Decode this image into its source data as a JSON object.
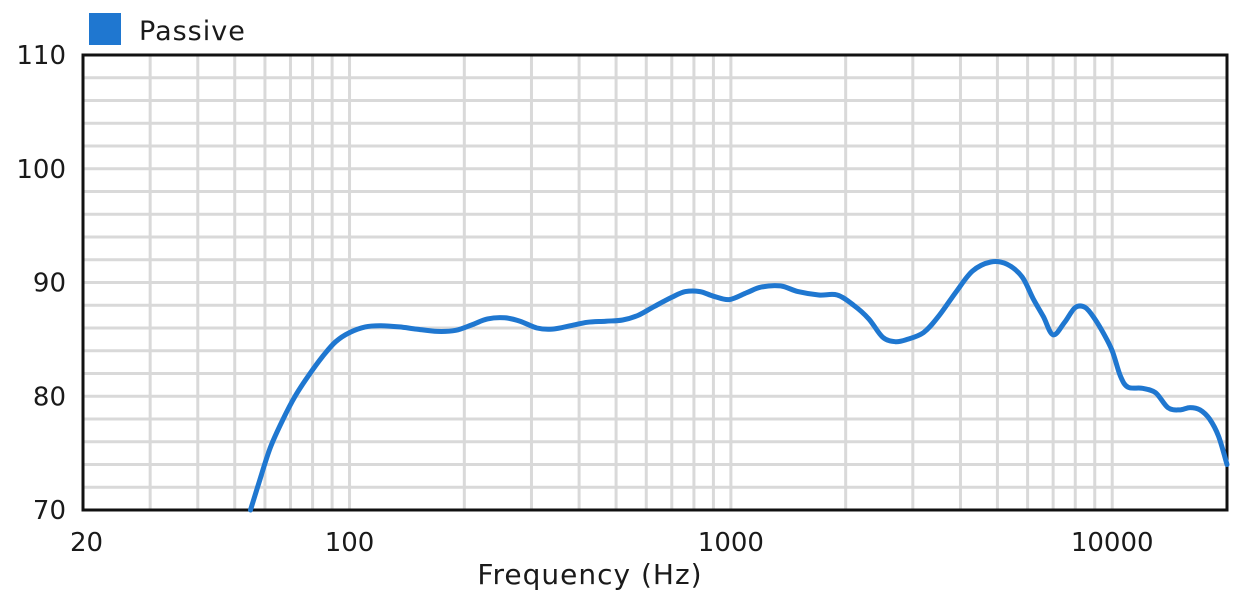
{
  "chart_data": {
    "type": "line",
    "xlabel": "Frequency (Hz)",
    "ylabel": "",
    "x_scale": "log",
    "xlim": [
      20,
      20000
    ],
    "ylim": [
      70,
      110
    ],
    "x_ticks": [
      20,
      100,
      1000,
      10000
    ],
    "x_tick_labels": [
      "20",
      "100",
      "1000",
      "10000"
    ],
    "y_ticks": [
      70,
      80,
      90,
      100,
      110
    ],
    "y_tick_labels": [
      "70",
      "80",
      "90",
      "100",
      "110"
    ],
    "grid": true,
    "legend_position": "top-left",
    "series": [
      {
        "name": "Passive",
        "color": "#1f77d0",
        "x": [
          55,
          58,
          62,
          67,
          72,
          78,
          85,
          92,
          100,
          110,
          120,
          135,
          150,
          170,
          190,
          210,
          230,
          255,
          280,
          310,
          340,
          380,
          420,
          470,
          520,
          570,
          630,
          700,
          760,
          830,
          900,
          990,
          1100,
          1200,
          1350,
          1500,
          1700,
          1900,
          2100,
          2300,
          2500,
          2700,
          2900,
          3200,
          3500,
          3900,
          4300,
          4800,
          5300,
          5800,
          6200,
          6600,
          7000,
          7500,
          8000,
          8500,
          9000,
          9500,
          10000,
          10500,
          11000,
          12000,
          13000,
          14000,
          15000,
          16000,
          17000,
          18000,
          19000,
          20000
        ],
        "y": [
          70,
          72.5,
          75.5,
          78,
          80,
          81.8,
          83.5,
          84.8,
          85.6,
          86.1,
          86.2,
          86.1,
          85.9,
          85.7,
          85.8,
          86.3,
          86.8,
          86.9,
          86.6,
          86.0,
          85.9,
          86.2,
          86.5,
          86.6,
          86.7,
          87.1,
          87.9,
          88.7,
          89.2,
          89.2,
          88.8,
          88.5,
          89.1,
          89.6,
          89.7,
          89.2,
          88.9,
          88.9,
          88.0,
          86.8,
          85.2,
          84.8,
          85.0,
          85.6,
          87.0,
          89.2,
          91.0,
          91.8,
          91.6,
          90.5,
          88.6,
          87.0,
          85.4,
          86.5,
          87.8,
          87.8,
          86.8,
          85.5,
          84.0,
          81.8,
          80.8,
          80.7,
          80.3,
          79.0,
          78.8,
          79.0,
          78.8,
          78.0,
          76.5,
          74.0
        ]
      }
    ]
  }
}
